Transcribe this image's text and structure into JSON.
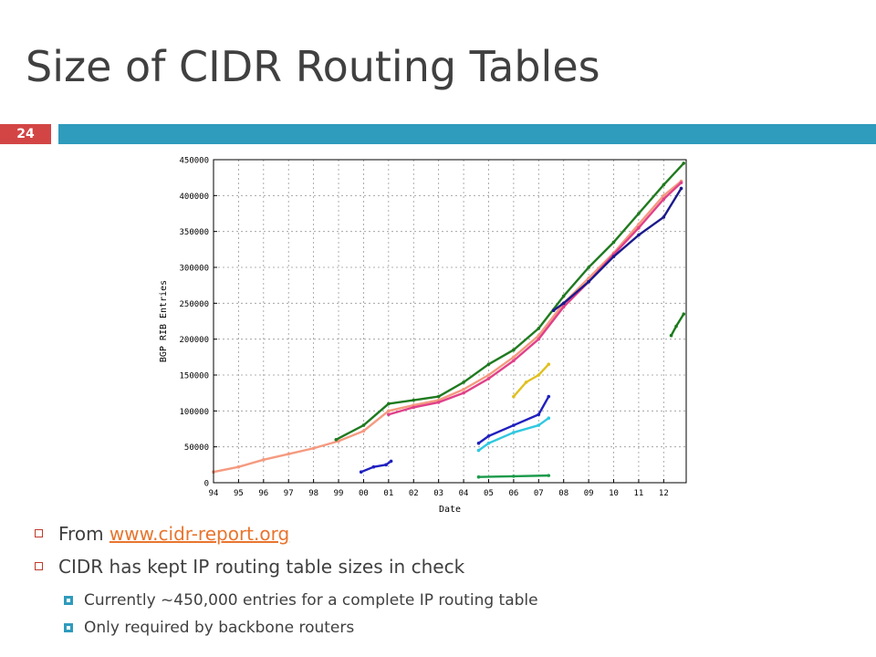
{
  "slide": {
    "title": "Size of CIDR Routing Tables",
    "number": "24"
  },
  "bullets": {
    "from_prefix": "From ",
    "from_link": "www.cidr-report.org",
    "cidr_text": "CIDR has kept IP routing table sizes in check",
    "sub1": "Currently ~450,000 entries for a complete IP routing table",
    "sub2": "Only required by backbone routers"
  },
  "colors": {
    "title": "#404040",
    "number_bg": "#d34545",
    "rule": "#2f9bbd",
    "link": "#e8752e",
    "bullet_box": "#c03a2b"
  },
  "chart_data": {
    "type": "scatter",
    "xlabel": "Date",
    "ylabel": "BGP RIB Entries",
    "x_ticks": [
      "94",
      "95",
      "96",
      "97",
      "98",
      "99",
      "00",
      "01",
      "02",
      "03",
      "04",
      "05",
      "06",
      "07",
      "08",
      "09",
      "10",
      "11",
      "12"
    ],
    "y_ticks": [
      0,
      50000,
      100000,
      150000,
      200000,
      250000,
      300000,
      350000,
      400000,
      450000
    ],
    "xlim": [
      1994,
      2012.9
    ],
    "ylim": [
      0,
      450000
    ],
    "grid": true,
    "series": [
      {
        "color": "#f59a80",
        "points": [
          [
            1994,
            15000
          ],
          [
            1995,
            22000
          ],
          [
            1996,
            32000
          ],
          [
            1997,
            40000
          ],
          [
            1998,
            48000
          ],
          [
            1999,
            58000
          ],
          [
            2000,
            72000
          ],
          [
            2001,
            100000
          ],
          [
            2002,
            108000
          ],
          [
            2003,
            115000
          ],
          [
            2004,
            130000
          ],
          [
            2005,
            150000
          ],
          [
            2006,
            175000
          ],
          [
            2007,
            205000
          ],
          [
            2008,
            250000
          ],
          [
            2009,
            285000
          ],
          [
            2010,
            320000
          ],
          [
            2011,
            360000
          ],
          [
            2012,
            400000
          ],
          [
            2012.7,
            420000
          ]
        ]
      },
      {
        "color": "#1f7a1f",
        "points": [
          [
            1998.9,
            60000
          ],
          [
            2000,
            80000
          ],
          [
            2001,
            110000
          ],
          [
            2002,
            115000
          ],
          [
            2003,
            120000
          ],
          [
            2004,
            140000
          ],
          [
            2005,
            165000
          ],
          [
            2006,
            185000
          ],
          [
            2007,
            215000
          ],
          [
            2008,
            260000
          ],
          [
            2009,
            300000
          ],
          [
            2010,
            335000
          ],
          [
            2011,
            375000
          ],
          [
            2012,
            415000
          ],
          [
            2012.8,
            445000
          ]
        ]
      },
      {
        "color": "#e0408a",
        "points": [
          [
            2001,
            95000
          ],
          [
            2002,
            105000
          ],
          [
            2003,
            112000
          ],
          [
            2004,
            125000
          ],
          [
            2005,
            145000
          ],
          [
            2006,
            170000
          ],
          [
            2007,
            200000
          ],
          [
            2008,
            245000
          ],
          [
            2009,
            280000
          ],
          [
            2010,
            318000
          ],
          [
            2011,
            355000
          ],
          [
            2012,
            395000
          ],
          [
            2012.7,
            418000
          ]
        ]
      },
      {
        "color": "#1a1a8c",
        "points": [
          [
            2007.6,
            240000
          ],
          [
            2008,
            250000
          ],
          [
            2009,
            280000
          ],
          [
            2010,
            315000
          ],
          [
            2011,
            345000
          ],
          [
            2012,
            370000
          ],
          [
            2012.7,
            410000
          ]
        ]
      },
      {
        "color": "#2020c0",
        "points": [
          [
            2004.6,
            55000
          ],
          [
            2005,
            65000
          ],
          [
            2006,
            80000
          ],
          [
            2007,
            95000
          ],
          [
            2007.4,
            120000
          ]
        ]
      },
      {
        "color": "#30c8e0",
        "points": [
          [
            2004.6,
            45000
          ],
          [
            2005,
            55000
          ],
          [
            2006,
            70000
          ],
          [
            2007,
            80000
          ],
          [
            2007.4,
            90000
          ]
        ]
      },
      {
        "color": "#e0c020",
        "points": [
          [
            2006,
            120000
          ],
          [
            2006.5,
            140000
          ],
          [
            2007,
            150000
          ],
          [
            2007.4,
            165000
          ]
        ]
      },
      {
        "color": "#1a9a4a",
        "points": [
          [
            2004.6,
            8000
          ],
          [
            2006,
            9000
          ],
          [
            2007.4,
            10000
          ]
        ]
      },
      {
        "color": "#2020c0",
        "points": [
          [
            1999.9,
            15000
          ],
          [
            2000.4,
            22000
          ],
          [
            2000.9,
            25000
          ],
          [
            2001.1,
            30000
          ]
        ]
      },
      {
        "color": "#1a7a1a",
        "points": [
          [
            2012.3,
            205000
          ],
          [
            2012.5,
            218000
          ],
          [
            2012.8,
            235000
          ]
        ]
      }
    ]
  }
}
